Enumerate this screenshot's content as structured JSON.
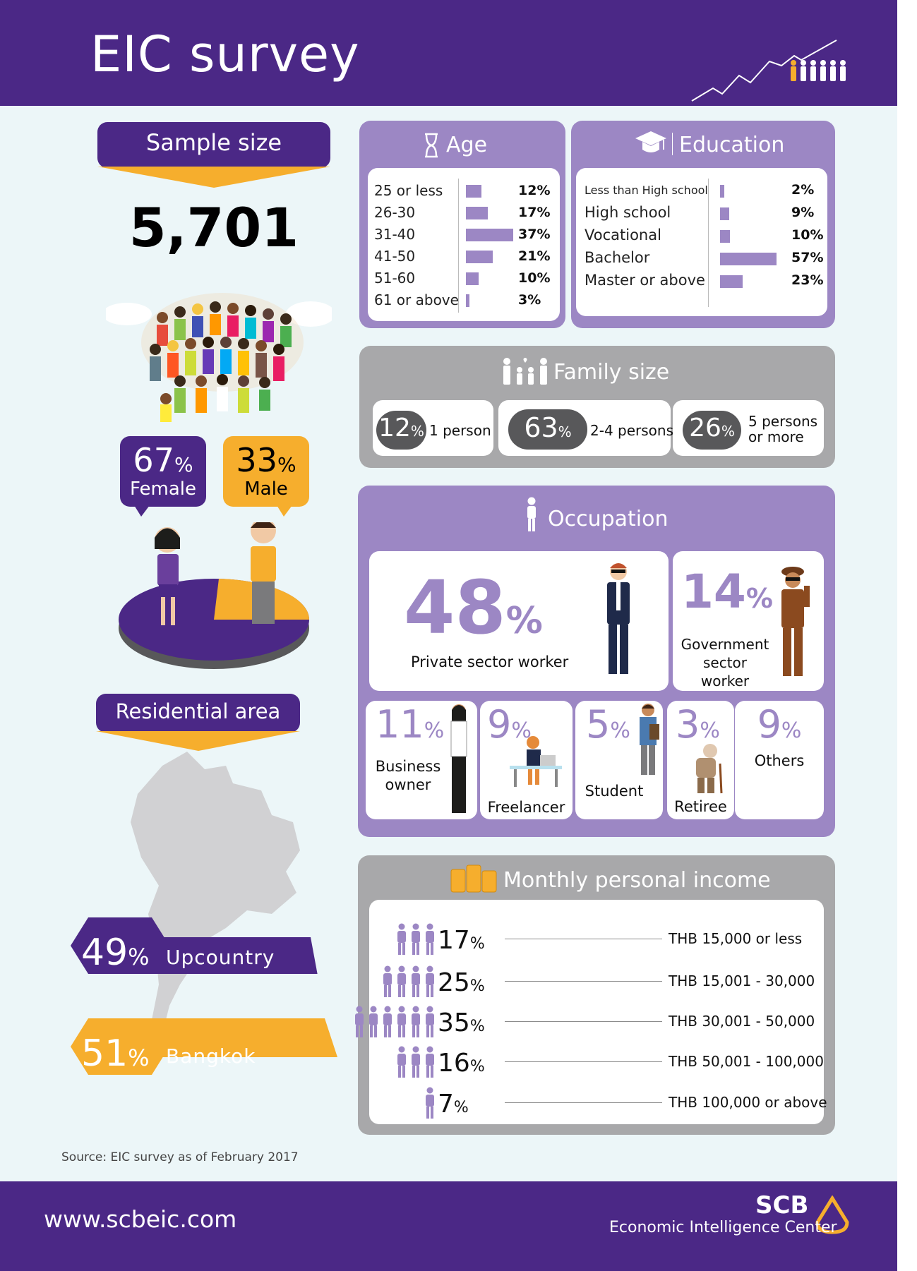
{
  "header": {
    "title": "EIC survey"
  },
  "sample": {
    "label": "Sample size",
    "value": "5,701"
  },
  "gender": {
    "female": {
      "pct": "67",
      "unit": "%",
      "label": "Female"
    },
    "male": {
      "pct": "33",
      "unit": "%",
      "label": "Male"
    }
  },
  "residential": {
    "label": "Residential area",
    "upcountry": {
      "pct": "49",
      "unit": "%",
      "label": "Upcountry"
    },
    "bangkok": {
      "pct": "51",
      "unit": "%",
      "label": "Bangkok"
    }
  },
  "age": {
    "title": "Age",
    "rows": [
      {
        "label": "25 or less",
        "pct": "12%",
        "value": 12
      },
      {
        "label": "26-30",
        "pct": "17%",
        "value": 17
      },
      {
        "label": "31-40",
        "pct": "37%",
        "value": 37
      },
      {
        "label": "41-50",
        "pct": "21%",
        "value": 21
      },
      {
        "label": "51-60",
        "pct": "10%",
        "value": 10
      },
      {
        "label": "61 or above",
        "pct": "3%",
        "value": 3
      }
    ]
  },
  "education": {
    "title": "Education",
    "rows": [
      {
        "label": "Less than High school",
        "pct": "2%",
        "value": 2
      },
      {
        "label": "High school",
        "pct": "9%",
        "value": 9
      },
      {
        "label": "Vocational",
        "pct": "10%",
        "value": 10
      },
      {
        "label": "Bachelor",
        "pct": "57%",
        "value": 57
      },
      {
        "label": "Master or above",
        "pct": "23%",
        "value": 23
      }
    ]
  },
  "family": {
    "title": "Family size",
    "items": [
      {
        "pct": "12",
        "unit": "%",
        "label": "1 person"
      },
      {
        "pct": "63",
        "unit": "%",
        "label": "2-4 persons"
      },
      {
        "pct": "26",
        "unit": "%",
        "label_line1": "5 persons",
        "label_line2": "or more"
      }
    ]
  },
  "occupation": {
    "title": "Occupation",
    "private": {
      "pct": "48",
      "unit": "%",
      "label": "Private sector worker"
    },
    "government": {
      "pct": "14",
      "unit": "%",
      "label_line1": "Government",
      "label_line2": "sector worker"
    },
    "business": {
      "pct": "11",
      "unit": "%",
      "label_line1": "Business",
      "label_line2": "owner"
    },
    "freelancer": {
      "pct": "9",
      "unit": "%",
      "label": "Freelancer"
    },
    "student": {
      "pct": "5",
      "unit": "%",
      "label": "Student"
    },
    "retiree": {
      "pct": "3",
      "unit": "%",
      "label": "Retiree"
    },
    "others": {
      "pct": "9",
      "unit": "%",
      "label": "Others"
    }
  },
  "income": {
    "title": "Monthly personal income",
    "rows": [
      {
        "pct": "17",
        "unit": "%",
        "label": "THB 15,000 or less",
        "value": 17
      },
      {
        "pct": "25",
        "unit": "%",
        "label": "THB 15,001 - 30,000",
        "value": 25
      },
      {
        "pct": "35",
        "unit": "%",
        "label": "THB 30,001 - 50,000",
        "value": 35
      },
      {
        "pct": "16",
        "unit": "%",
        "label": "THB 50,001 - 100,000",
        "value": 16
      },
      {
        "pct": "7",
        "unit": "%",
        "label": "THB 100,000 or above",
        "value": 7
      }
    ]
  },
  "source": "Source: EIC survey as of February 2017",
  "footer": {
    "url": "www.scbeic.com",
    "brand": "SCB",
    "brand_sub": "Economic Intelligence Center"
  },
  "colors": {
    "purple": "#4b2886",
    "lavender": "#9c87c4",
    "orange": "#f6ae2d",
    "gray": "#a8a8aa",
    "dark_gray": "#58585a"
  }
}
